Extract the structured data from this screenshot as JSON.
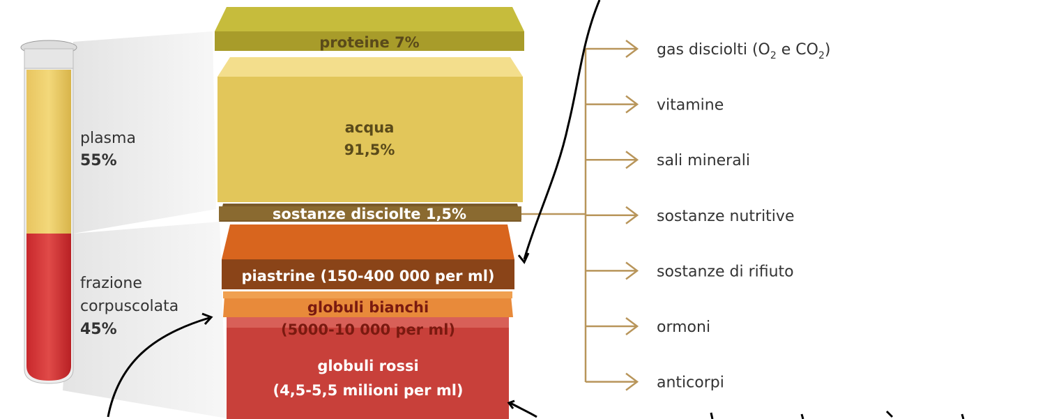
{
  "tube": {
    "plasma": [
      "plasma",
      "55%"
    ],
    "corpuscular": [
      "frazione",
      "corpuscolata",
      "45%"
    ]
  },
  "layers": {
    "proteine": [
      "proteine 7%"
    ],
    "acqua": [
      "acqua",
      "91,5%"
    ],
    "sostanze": [
      "sostanze disciolte 1,5%"
    ],
    "piastrine": [
      "piastrine (150-400 000 per ml)"
    ],
    "bianchi": [
      "globuli bianchi",
      "(5000-10 000 per ml)"
    ],
    "rossi": [
      "globuli rossi",
      "(4,5-5,5 milioni per ml)"
    ]
  },
  "items": [
    [
      "gas disciolti (O",
      "2",
      " e CO",
      "2",
      ")"
    ],
    "vitamine",
    "sali minerali",
    "sostanze nutritive",
    "sostanze di rifiuto",
    "ormoni",
    "anticorpi"
  ]
}
